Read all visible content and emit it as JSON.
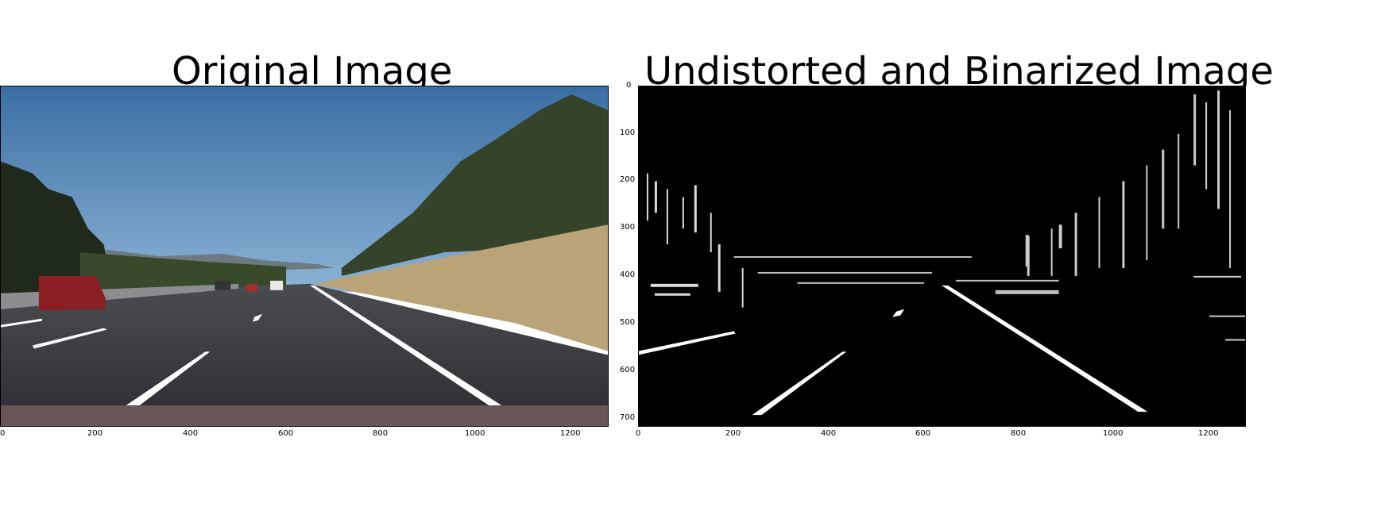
{
  "left_panel": {
    "title": "Original Image",
    "x_ticks": [
      "0",
      "200",
      "400",
      "600",
      "800",
      "1000",
      "1200"
    ]
  },
  "right_panel": {
    "title": "Undistorted and Binarized Image",
    "x_ticks": [
      "0",
      "200",
      "400",
      "600",
      "800",
      "1000",
      "1200"
    ],
    "y_ticks": [
      "0",
      "100",
      "200",
      "300",
      "400",
      "500",
      "600",
      "700"
    ]
  },
  "colors": {
    "sky": "#3f76a9",
    "road": "#3a3b40",
    "grass": "#b8a173",
    "trees": "#2f3a22",
    "lane_line": "#ffffff",
    "binary_bg": "#000000"
  }
}
